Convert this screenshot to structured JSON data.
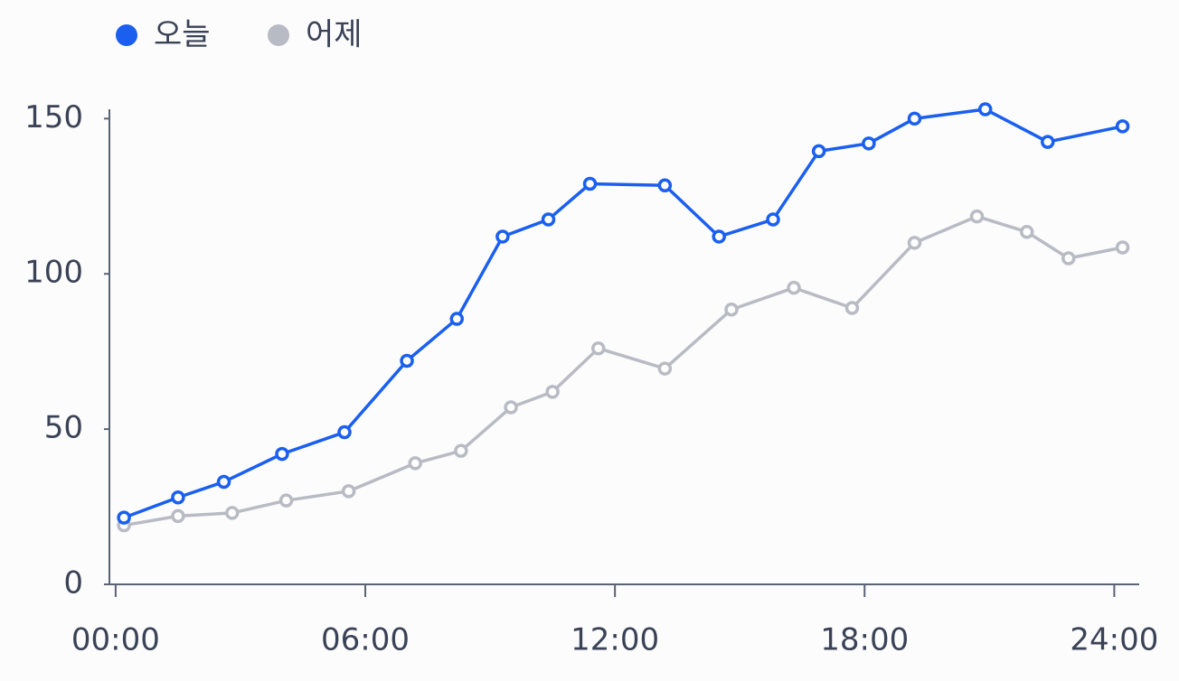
{
  "chart_data": {
    "type": "line",
    "series": [
      {
        "name": "오늘",
        "color": "#1a5ff0",
        "x": [
          0.2,
          1.5,
          2.6,
          4.0,
          5.5,
          7.0,
          8.2,
          9.3,
          10.4,
          11.4,
          13.2,
          14.5,
          15.8,
          16.9,
          18.1,
          19.2,
          20.9,
          22.4,
          24.2
        ],
        "values": [
          21.5,
          28,
          33,
          42,
          49,
          72,
          85.5,
          112,
          117.5,
          129,
          128.5,
          112,
          117.5,
          139.5,
          142,
          150,
          153,
          142.5,
          147.5
        ]
      },
      {
        "name": "어제",
        "color": "#b9bbc4",
        "x": [
          0.2,
          1.5,
          2.8,
          4.1,
          5.6,
          7.2,
          8.3,
          9.5,
          10.5,
          11.6,
          13.2,
          14.8,
          16.3,
          17.7,
          19.2,
          20.7,
          21.9,
          22.9,
          24.2
        ],
        "values": [
          19,
          22,
          23,
          27,
          30,
          39,
          43,
          57,
          62,
          76,
          69.5,
          88.5,
          95.5,
          89,
          110,
          118.5,
          113.5,
          105,
          108.5
        ]
      }
    ],
    "xlim": [
      -0.15,
      24.6
    ],
    "xticks": [
      {
        "value": 0,
        "label": "00:00"
      },
      {
        "value": 6,
        "label": "06:00"
      },
      {
        "value": 12,
        "label": "12:00"
      },
      {
        "value": 18,
        "label": "18:00"
      },
      {
        "value": 24,
        "label": "24:00"
      }
    ],
    "ylim": [
      0,
      153
    ],
    "yticks": [
      0,
      50,
      100,
      150
    ],
    "legend": "top-left"
  }
}
